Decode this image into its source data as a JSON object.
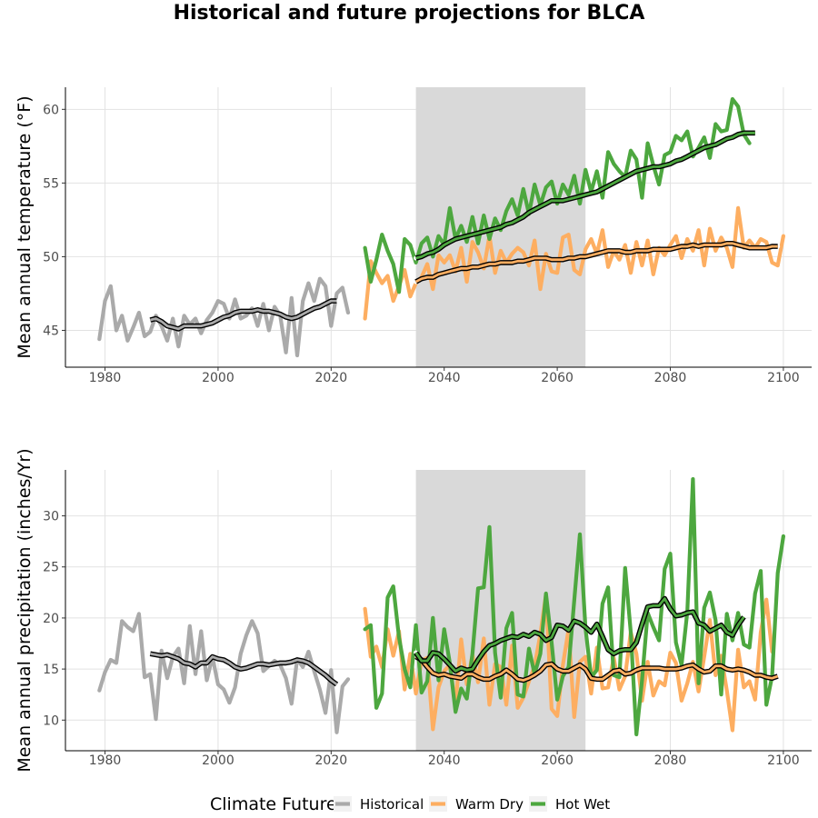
{
  "title": "Historical and future projections for BLCA",
  "legend": {
    "title": "Climate Future",
    "placement": "bottom",
    "entries": [
      {
        "label": "Historical",
        "color": "#aaaaaa"
      },
      {
        "label": "Warm Dry",
        "color": "#fdae61"
      },
      {
        "label": "Hot Wet",
        "color": "#4da73f"
      }
    ]
  },
  "chart_data": [
    {
      "type": "line",
      "ylabel": "Mean annual temperature (°F)",
      "xlabel": "",
      "xlim": [
        1973,
        2105
      ],
      "ylim": [
        42.5,
        61.5
      ],
      "xticks": [
        1980,
        2000,
        2020,
        2040,
        2060,
        2080,
        2100
      ],
      "yticks": [
        45,
        50,
        55,
        60
      ],
      "shaded_range": [
        2035,
        2065
      ],
      "grid": true,
      "series": [
        {
          "name": "Historical",
          "color": "#aaaaaa",
          "x_start": 1979,
          "values": [
            44.4,
            47.0,
            48.0,
            45.0,
            46.0,
            44.3,
            45.2,
            46.2,
            44.6,
            44.9,
            46.0,
            45.3,
            44.3,
            45.8,
            43.9,
            46.0,
            45.4,
            45.8,
            44.8,
            45.7,
            46.2,
            47.0,
            46.8,
            45.8,
            47.1,
            45.8,
            46.0,
            46.5,
            45.3,
            46.8,
            45.0,
            46.6,
            46.0,
            43.5,
            47.2,
            43.3,
            47.0,
            48.2,
            47.0,
            48.5,
            48.0,
            45.3,
            47.5,
            47.9,
            46.2
          ]
        },
        {
          "name": "Historical",
          "color": "#000000",
          "smooth": true,
          "x_start": 1988,
          "values": [
            45.7,
            45.8,
            45.6,
            45.3,
            45.2,
            45.1,
            45.3,
            45.3,
            45.3,
            45.3,
            45.4,
            45.5,
            45.7,
            45.9,
            46.0,
            46.2,
            46.3,
            46.3,
            46.3,
            46.4,
            46.3,
            46.3,
            46.2,
            46.1,
            45.9,
            45.8,
            45.9,
            46.1,
            46.3,
            46.5,
            46.6,
            46.8,
            47.0,
            47.0
          ]
        },
        {
          "name": "Warm Dry",
          "color": "#fdae61",
          "x_start": 2026,
          "values": [
            45.8,
            49.7,
            48.9,
            48.2,
            48.7,
            47.0,
            48.0,
            49.1,
            47.3,
            48.2,
            48.6,
            49.5,
            47.8,
            50.1,
            49.6,
            50.1,
            49.0,
            50.6,
            48.3,
            51.0,
            50.3,
            49.2,
            51.4,
            48.9,
            50.4,
            49.6,
            50.2,
            50.6,
            50.3,
            49.4,
            51.1,
            47.8,
            50.2,
            49.0,
            48.9,
            51.3,
            51.5,
            49.1,
            48.8,
            50.5,
            51.2,
            50.2,
            51.8,
            49.3,
            50.4,
            49.8,
            50.8,
            48.9,
            51.0,
            49.4,
            51.1,
            48.8,
            50.6,
            50.1,
            50.8,
            51.4,
            49.9,
            51.2,
            50.4,
            51.8,
            49.4,
            51.9,
            50.4,
            51.3,
            50.6,
            49.3,
            53.3,
            50.6,
            51.1,
            50.6,
            51.2,
            51.0,
            49.6,
            49.4,
            51.4
          ]
        },
        {
          "name": "Warm Dry",
          "color": "#000000",
          "smooth": true,
          "x_start": 2035,
          "values": [
            48.3,
            48.5,
            48.6,
            48.6,
            48.8,
            48.9,
            49.0,
            49.1,
            49.2,
            49.2,
            49.3,
            49.3,
            49.4,
            49.5,
            49.5,
            49.6,
            49.6,
            49.6,
            49.7,
            49.7,
            49.8,
            49.9,
            49.9,
            49.9,
            49.8,
            49.8,
            49.8,
            49.9,
            49.9,
            50.0,
            50.0,
            50.1,
            50.2,
            50.3,
            50.4,
            50.4,
            50.4,
            50.3,
            50.3,
            50.4,
            50.4,
            50.4,
            50.5,
            50.5,
            50.5,
            50.5,
            50.6,
            50.7,
            50.7,
            50.8,
            50.7,
            50.8,
            50.8,
            50.8,
            50.8,
            50.9,
            50.9,
            50.8,
            50.7,
            50.6,
            50.6,
            50.6,
            50.6,
            50.7,
            50.7
          ]
        },
        {
          "name": "Hot Wet",
          "color": "#4da73f",
          "x_start": 2026,
          "values": [
            50.6,
            48.3,
            49.8,
            51.5,
            50.4,
            49.5,
            47.6,
            51.2,
            50.8,
            49.6,
            50.9,
            51.3,
            50.0,
            51.4,
            50.8,
            53.3,
            51.2,
            52.1,
            51.0,
            52.7,
            50.9,
            52.8,
            51.2,
            52.6,
            51.8,
            53.1,
            53.9,
            52.8,
            54.6,
            52.9,
            54.9,
            53.5,
            54.7,
            55.1,
            53.6,
            54.9,
            54.2,
            55.5,
            53.6,
            55.9,
            54.4,
            55.8,
            54.0,
            57.1,
            56.3,
            55.8,
            55.4,
            57.2,
            56.6,
            54.0,
            57.7,
            56.2,
            54.9,
            56.9,
            57.1,
            58.2,
            57.9,
            58.5,
            56.8,
            57.4,
            58.1,
            56.7,
            59.0,
            58.5,
            58.6,
            60.7,
            60.2,
            58.3,
            57.7
          ]
        },
        {
          "name": "Hot Wet",
          "color": "#000000",
          "smooth": true,
          "x_start": 2035,
          "values": [
            49.9,
            50.0,
            50.2,
            50.3,
            50.5,
            50.8,
            51.0,
            51.2,
            51.3,
            51.4,
            51.5,
            51.6,
            51.7,
            51.8,
            51.9,
            52.0,
            52.2,
            52.3,
            52.5,
            52.7,
            53.0,
            53.2,
            53.4,
            53.6,
            53.8,
            53.8,
            53.8,
            53.9,
            54.0,
            54.1,
            54.2,
            54.3,
            54.4,
            54.6,
            54.8,
            55.0,
            55.2,
            55.4,
            55.6,
            55.8,
            55.9,
            56.0,
            56.1,
            56.1,
            56.2,
            56.3,
            56.5,
            56.6,
            56.8,
            57.0,
            57.2,
            57.4,
            57.5,
            57.6,
            57.8,
            58.0,
            58.1,
            58.3,
            58.4,
            58.4,
            58.4
          ]
        }
      ]
    },
    {
      "type": "line",
      "ylabel": "Mean annual precipitation (inches/Yr)",
      "xlabel": "",
      "xlim": [
        1973,
        2105
      ],
      "ylim": [
        7,
        34.5
      ],
      "xticks": [
        1980,
        2000,
        2020,
        2040,
        2060,
        2080,
        2100
      ],
      "yticks": [
        10,
        15,
        20,
        25,
        30
      ],
      "shaded_range": [
        2035,
        2065
      ],
      "grid": true,
      "series": [
        {
          "name": "Historical",
          "color": "#aaaaaa",
          "x_start": 1979,
          "values": [
            12.9,
            14.7,
            15.9,
            15.6,
            19.7,
            19.1,
            18.7,
            20.4,
            14.2,
            14.5,
            10.1,
            16.8,
            14.1,
            16.2,
            17.0,
            13.6,
            19.2,
            14.5,
            18.7,
            13.9,
            16.2,
            13.5,
            13.0,
            11.7,
            13.2,
            16.5,
            18.3,
            19.7,
            18.5,
            14.8,
            15.3,
            15.8,
            15.4,
            14.1,
            11.6,
            16.0,
            15.2,
            16.7,
            14.8,
            13.0,
            10.7,
            14.9,
            8.8,
            13.3,
            14.0
          ]
        },
        {
          "name": "Historical",
          "color": "#000000",
          "smooth": true,
          "x_start": 1988,
          "values": [
            16.5,
            16.4,
            16.3,
            16.4,
            16.2,
            16.0,
            15.6,
            15.5,
            15.2,
            15.6,
            15.6,
            16.2,
            16.0,
            15.9,
            15.6,
            15.2,
            15.0,
            15.1,
            15.3,
            15.5,
            15.5,
            15.4,
            15.5,
            15.6,
            15.6,
            15.7,
            15.9,
            15.8,
            15.6,
            15.2,
            14.8,
            14.4,
            13.9,
            13.5
          ]
        },
        {
          "name": "Warm Dry",
          "color": "#fdae61",
          "x_start": 2026,
          "values": [
            20.9,
            16.2,
            17.2,
            15.2,
            18.9,
            16.3,
            18.7,
            13.0,
            16.5,
            12.6,
            15.8,
            16.1,
            9.1,
            13.2,
            14.8,
            15.4,
            11.5,
            17.9,
            13.5,
            16.4,
            13.7,
            18.0,
            11.5,
            15.5,
            15.2,
            11.5,
            17.3,
            11.2,
            12.2,
            13.8,
            15.3,
            18.4,
            22.3,
            11.1,
            10.4,
            15.4,
            18.9,
            10.3,
            15.7,
            16.2,
            12.6,
            17.1,
            13.1,
            13.2,
            16.1,
            13.0,
            14.3,
            18.6,
            16.5,
            11.9,
            15.7,
            12.4,
            13.8,
            13.4,
            16.6,
            15.6,
            11.9,
            13.6,
            15.7,
            12.8,
            16.2,
            19.8,
            14.4,
            16.3,
            12.9,
            9.0,
            16.9,
            13.2,
            13.8,
            12.0,
            18.6,
            21.8,
            16.7
          ]
        },
        {
          "name": "Warm Dry",
          "color": "#000000",
          "smooth": true,
          "x_start": 2035,
          "values": [
            16.2,
            15.9,
            15.2,
            14.6,
            14.4,
            14.5,
            14.3,
            14.2,
            14.1,
            14.5,
            14.5,
            14.2,
            14.0,
            14.0,
            14.3,
            14.5,
            14.9,
            14.5,
            14.0,
            13.9,
            14.1,
            14.4,
            14.8,
            15.4,
            15.5,
            15.0,
            14.8,
            14.8,
            15.1,
            15.4,
            15.0,
            14.1,
            14.0,
            14.0,
            14.4,
            14.8,
            14.9,
            14.5,
            14.6,
            14.9,
            15.1,
            15.1,
            15.1,
            15.1,
            15.0,
            15.0,
            15.0,
            15.1,
            15.3,
            15.4,
            15.0,
            14.7,
            14.8,
            15.3,
            15.3,
            15.0,
            14.9,
            15.0,
            14.9,
            14.7,
            14.4,
            14.4,
            14.2,
            14.1,
            14.3
          ]
        },
        {
          "name": "Hot Wet",
          "color": "#4da73f",
          "x_start": 2026,
          "values": [
            18.9,
            19.3,
            11.2,
            12.6,
            22.0,
            23.1,
            18.1,
            15.0,
            13.2,
            19.3,
            12.7,
            13.8,
            20.0,
            13.9,
            18.9,
            15.6,
            10.8,
            13.1,
            12.1,
            16.5,
            22.9,
            23.0,
            28.9,
            16.6,
            12.2,
            19.0,
            20.5,
            12.5,
            12.3,
            17.0,
            14.5,
            16.5,
            22.4,
            17.6,
            12.0,
            14.3,
            15.2,
            21.7,
            28.2,
            19.0,
            14.2,
            14.9,
            21.4,
            23.0,
            14.4,
            14.2,
            24.9,
            18.6,
            8.6,
            13.9,
            20.5,
            19.1,
            17.8,
            24.8,
            26.3,
            17.6,
            15.4,
            20.6,
            33.6,
            13.6,
            21.0,
            22.5,
            19.8,
            12.5,
            20.4,
            17.8,
            20.5,
            17.4,
            17.1,
            22.4,
            24.6,
            11.5,
            14.3,
            24.4,
            28.0
          ]
        },
        {
          "name": "Hot Wet",
          "color": "#000000",
          "smooth": true,
          "x_start": 2035,
          "values": [
            16.6,
            15.8,
            15.8,
            16.6,
            16.5,
            16.0,
            15.4,
            14.8,
            15.1,
            14.9,
            15.0,
            15.9,
            16.7,
            17.3,
            17.5,
            17.8,
            18.0,
            18.2,
            18.1,
            18.4,
            18.2,
            18.6,
            18.4,
            17.8,
            18.1,
            19.3,
            19.2,
            18.8,
            19.7,
            19.5,
            19.1,
            18.6,
            19.4,
            18.2,
            16.9,
            16.5,
            16.8,
            16.9,
            16.9,
            17.6,
            19.4,
            21.1,
            21.2,
            21.2,
            21.9,
            20.9,
            20.2,
            20.3,
            20.5,
            20.6,
            19.5,
            19.3,
            18.7,
            19.0,
            19.3,
            18.6,
            18.3,
            19.3,
            20.1
          ]
        }
      ]
    }
  ]
}
